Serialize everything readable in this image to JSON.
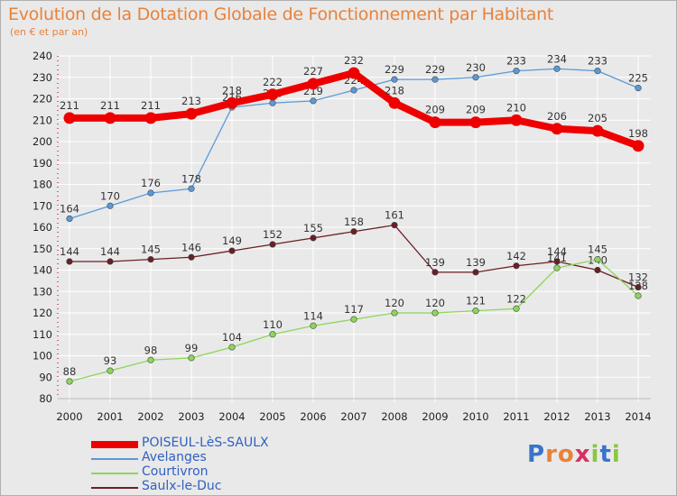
{
  "header": {
    "title": "Evolution de la Dotation Globale de Fonctionnement par Habitant",
    "subtitle": "(en € et par an)"
  },
  "logo": {
    "text": "Proxiti"
  },
  "colors": {
    "background": "#e9e9e9",
    "grid": "#ffffff",
    "axis_text": "#222222",
    "label_text": "#333333",
    "title": "#e8823a"
  },
  "chart_data": {
    "type": "line",
    "title": "Evolution de la Dotation Globale de Fonctionnement par Habitant",
    "subtitle": "(en € et par an)",
    "xlabel": "",
    "ylabel": "",
    "ylim": [
      80,
      240
    ],
    "yticks": [
      80,
      90,
      100,
      110,
      120,
      130,
      140,
      150,
      160,
      170,
      180,
      190,
      200,
      210,
      220,
      230,
      240
    ],
    "grid": true,
    "legend_position": "bottom-left",
    "categories": [
      "2000",
      "2001",
      "2002",
      "2003",
      "2004",
      "2005",
      "2006",
      "2007",
      "2008",
      "2009",
      "2010",
      "2011",
      "2012",
      "2013",
      "2014"
    ],
    "series": [
      {
        "name": "Saulx-le-Duc",
        "color": "#6b1f24",
        "values": [
          144,
          144,
          145,
          146,
          149,
          152,
          155,
          158,
          161,
          139,
          139,
          142,
          144,
          140,
          132
        ]
      },
      {
        "name": "Courtivron",
        "color": "#8cd65a",
        "values": [
          88,
          93,
          98,
          99,
          104,
          110,
          114,
          117,
          120,
          120,
          121,
          122,
          141,
          145,
          128
        ]
      },
      {
        "name": "Avelanges",
        "color": "#5a9ad8",
        "values": [
          164,
          170,
          176,
          178,
          216,
          218,
          219,
          224,
          229,
          229,
          230,
          233,
          234,
          233,
          225
        ]
      },
      {
        "name": "POISEUL-LèS-SAULX",
        "color": "#ee0000",
        "emphasis": true,
        "values": [
          211,
          211,
          211,
          213,
          218,
          222,
          227,
          232,
          218,
          209,
          209,
          210,
          206,
          205,
          198
        ]
      }
    ],
    "legend": [
      "POISEUL-LèS-SAULX",
      "Avelanges",
      "Courtivron",
      "Saulx-le-Duc"
    ]
  }
}
